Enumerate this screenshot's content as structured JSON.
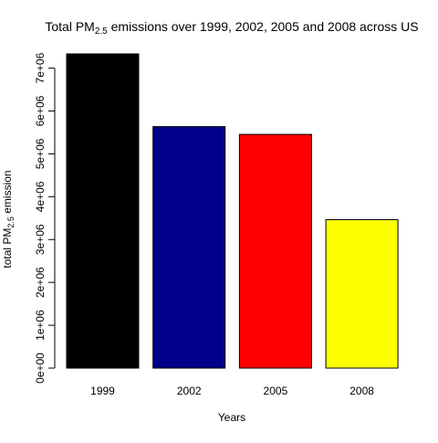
{
  "chart_data": {
    "type": "bar",
    "title": {
      "prefix": "Total PM",
      "subscript": "2.5",
      "suffix": " emissions over 1999, 2002, 2005 and 2008 across US"
    },
    "xlabel": "Years",
    "ylabel": {
      "prefix": "total PM",
      "subscript": "2.5",
      "suffix": " emission"
    },
    "categories": [
      "1999",
      "2002",
      "2005",
      "2008"
    ],
    "values": [
      7332967,
      5635780,
      5454703,
      3464206
    ],
    "colors": [
      "#000000",
      "#00008b",
      "#ff0000",
      "#ffff00"
    ],
    "ylim": [
      0,
      7332967
    ],
    "yticks": [
      0,
      1000000,
      2000000,
      3000000,
      4000000,
      5000000,
      6000000,
      7000000
    ],
    "ytick_labels": [
      "0e+00",
      "1e+06",
      "2e+06",
      "3e+06",
      "4e+06",
      "5e+06",
      "6e+06",
      "7e+06"
    ],
    "grid": false,
    "legend": "none"
  }
}
